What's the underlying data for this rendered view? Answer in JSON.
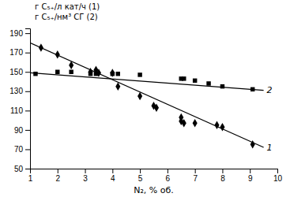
{
  "chart_data": {
    "type": "scatter",
    "x_label": "N₂, % об.",
    "xlim": [
      1,
      10
    ],
    "ylim": [
      50,
      195
    ],
    "xticks": [
      1,
      2,
      3,
      4,
      5,
      6,
      7,
      8,
      9,
      10
    ],
    "yticks": [
      50,
      70,
      90,
      110,
      130,
      150,
      170,
      190
    ],
    "grid": false,
    "legend": "top",
    "series": [
      {
        "name": "г C₅₊/л кат/ч (1)",
        "type": "scatter",
        "marker": "diamond",
        "color": "#000000",
        "x": [
          1.4,
          2.0,
          2.5,
          3.2,
          3.4,
          3.5,
          4.0,
          4.2,
          5.0,
          5.5,
          5.6,
          6.5,
          6.5,
          6.6,
          7.0,
          7.8,
          8.0,
          9.1
        ],
        "values": [
          175,
          168,
          157,
          150,
          152,
          149,
          149,
          135,
          125,
          115,
          113,
          103,
          99,
          97,
          97,
          95,
          93,
          75
        ]
      },
      {
        "type": "line",
        "color": "#000000",
        "label": "1",
        "x": [
          1.0,
          9.5
        ],
        "values": [
          180,
          72
        ]
      },
      {
        "name": "г C₅₊/нм³ СГ (2)",
        "type": "scatter",
        "marker": "square",
        "color": "#000000",
        "x": [
          1.2,
          2.0,
          2.5,
          3.2,
          3.4,
          4.0,
          4.2,
          5.0,
          6.5,
          6.6,
          7.0,
          7.5,
          8.0,
          9.1
        ],
        "values": [
          148,
          150,
          150,
          148,
          148,
          148,
          148,
          147,
          143,
          143,
          141,
          138,
          135,
          132
        ]
      },
      {
        "type": "line",
        "color": "#000000",
        "label": "2",
        "x": [
          1.0,
          9.5
        ],
        "values": [
          149,
          131
        ]
      }
    ]
  }
}
